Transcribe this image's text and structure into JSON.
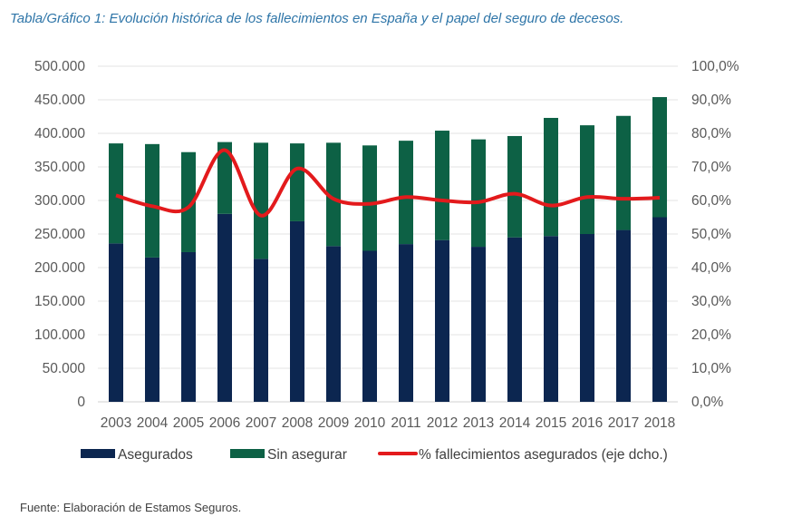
{
  "title": "Tabla/Gráfico 1: Evolución histórica de los fallecimientos en España y el papel del seguro de decesos.",
  "source": "Fuente: Elaboración de Estamos Seguros.",
  "chart_data": {
    "type": "bar",
    "stacked": true,
    "categories": [
      "2003",
      "2004",
      "2005",
      "2006",
      "2007",
      "2008",
      "2009",
      "2010",
      "2011",
      "2012",
      "2013",
      "2014",
      "2015",
      "2016",
      "2017",
      "2018"
    ],
    "series": [
      {
        "name": "Asegurados",
        "type": "bar",
        "axis": "left",
        "color": "#0c2650",
        "values": [
          236000,
          215000,
          223000,
          280000,
          213000,
          269000,
          232000,
          225000,
          235000,
          241000,
          231000,
          245000,
          247000,
          250000,
          256000,
          275000
        ]
      },
      {
        "name": "Sin asegurar",
        "type": "bar",
        "axis": "left",
        "color": "#0d6145",
        "values": [
          149000,
          169000,
          149000,
          107000,
          173000,
          116000,
          154000,
          157000,
          154000,
          163000,
          160000,
          151000,
          176000,
          162000,
          170000,
          179000
        ]
      },
      {
        "name": "% fallecimientos asegurados (eje dcho.)",
        "type": "line",
        "axis": "right",
        "color": "#e31a1c",
        "values": [
          61.5,
          58.3,
          58.0,
          75.0,
          55.5,
          69.5,
          60.5,
          59.0,
          61.0,
          60.0,
          59.5,
          62.0,
          58.5,
          61.0,
          60.5,
          60.8
        ]
      }
    ],
    "y_left": {
      "min": 0,
      "max": 500000,
      "tick_labels": [
        "0",
        "50.000",
        "100.000",
        "150.000",
        "200.000",
        "250.000",
        "300.000",
        "350.000",
        "400.000",
        "450.000",
        "500.000"
      ]
    },
    "y_right": {
      "min": 0,
      "max": 100,
      "tick_labels": [
        "0,0%",
        "10,0%",
        "20,0%",
        "30,0%",
        "40,0%",
        "50,0%",
        "60,0%",
        "70,0%",
        "80,0%",
        "90,0%",
        "100,0%"
      ]
    },
    "grid": true,
    "legend_position": "bottom"
  }
}
